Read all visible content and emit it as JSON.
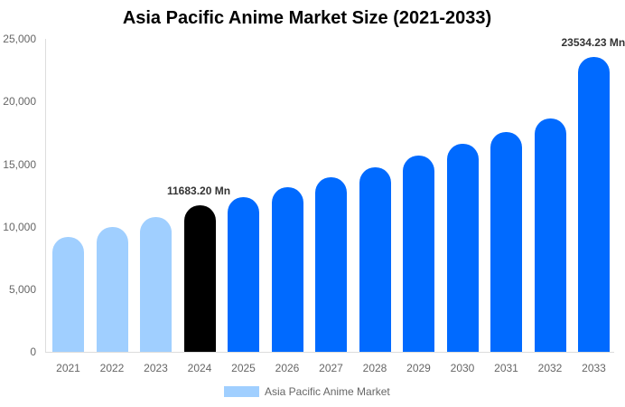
{
  "title": "Asia Pacific Anime Market Size (2021-2033)",
  "legend": {
    "label": "Asia Pacific Anime Market",
    "color": "#a0cfff"
  },
  "y_ticks": [
    "25,000",
    "20,000",
    "15,000",
    "10,000",
    "5,000",
    "0"
  ],
  "colors": {
    "historical": "#a0cfff",
    "base_year": "#000000",
    "forecast": "#006aff"
  },
  "chart_data": {
    "type": "bar",
    "title": "Asia Pacific Anime Market Size (2021-2033)",
    "xlabel": "",
    "ylabel": "",
    "ylim": [
      0,
      25000
    ],
    "grid": false,
    "legend_position": "bottom",
    "categories": [
      "2021",
      "2022",
      "2023",
      "2024",
      "2025",
      "2026",
      "2027",
      "2028",
      "2029",
      "2030",
      "2031",
      "2032",
      "2033"
    ],
    "series": [
      {
        "name": "Asia Pacific Anime Market",
        "values": [
          9180,
          9970,
          10800,
          11683.2,
          12390,
          13130,
          13920,
          14760,
          15650,
          16590,
          17590,
          18660,
          23534.23
        ]
      }
    ],
    "annotations": [
      {
        "category": "2024",
        "text": "11683.20 Mn"
      },
      {
        "category": "2033",
        "text": "23534.23 Mn"
      }
    ]
  }
}
